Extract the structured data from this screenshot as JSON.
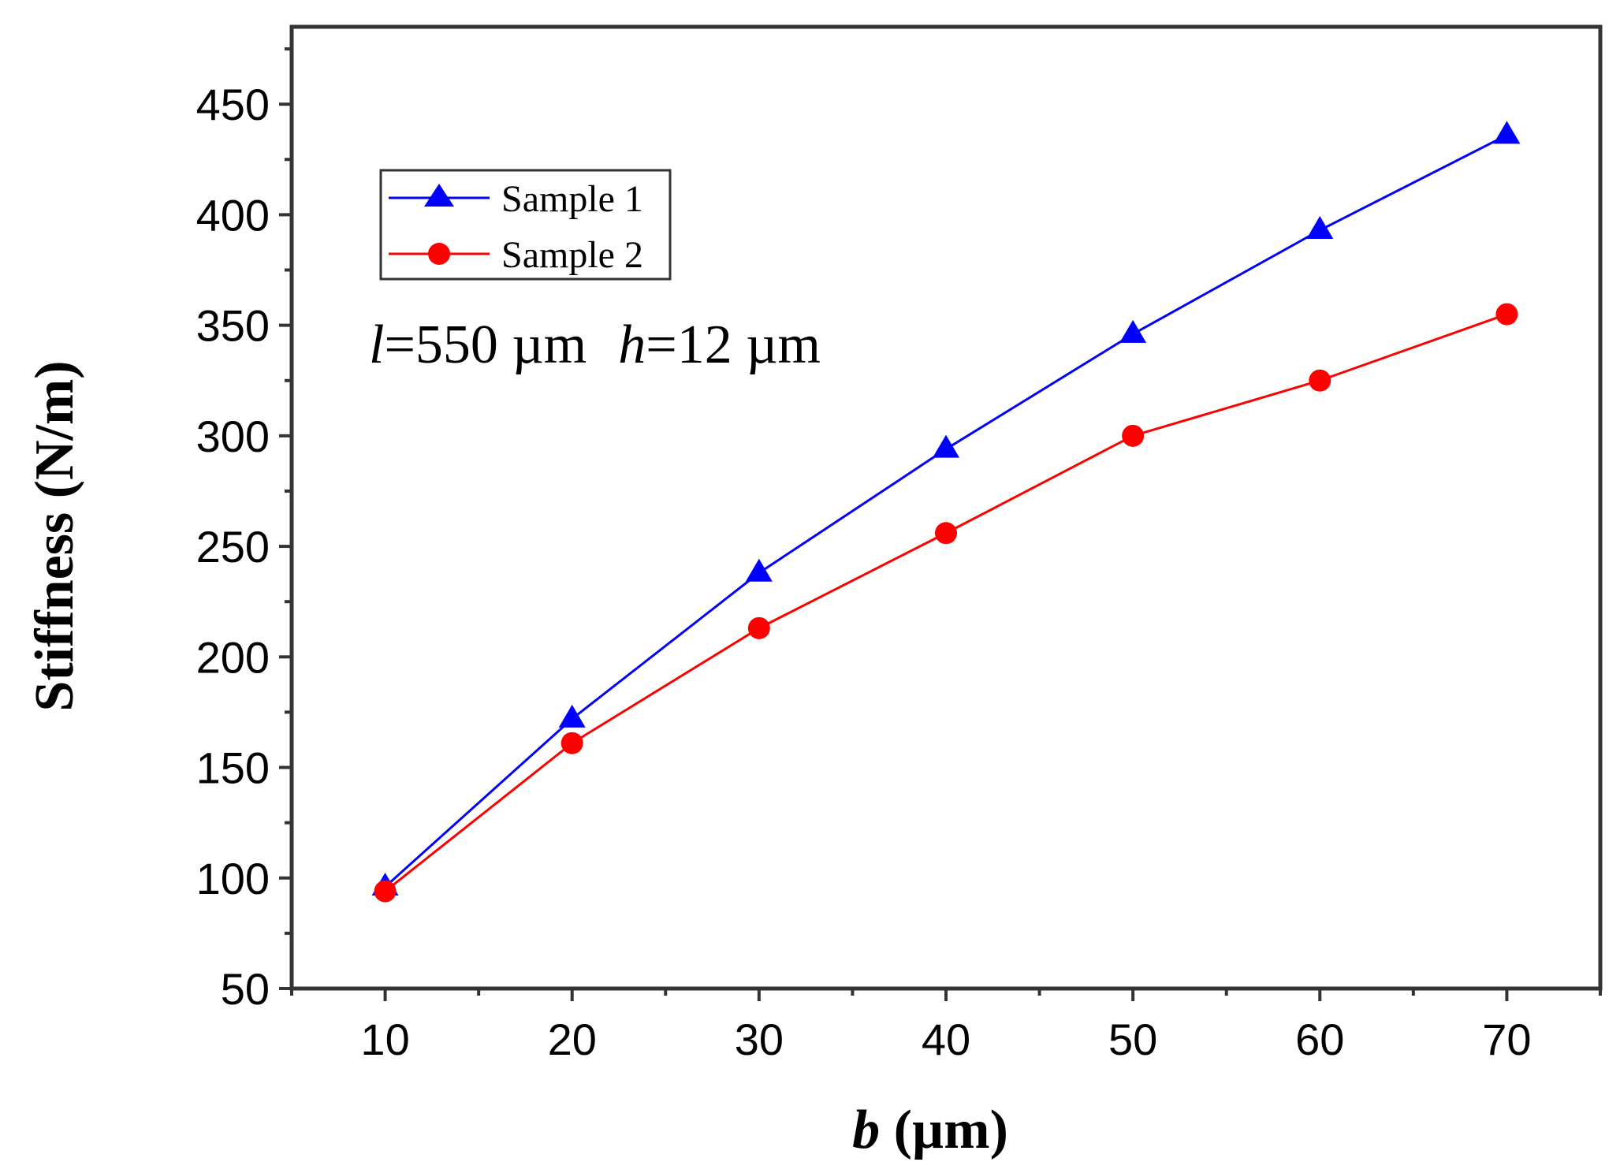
{
  "chart_data": {
    "type": "line",
    "title": "",
    "xlabel": {
      "italic": "b",
      "rest": " (µm)"
    },
    "ylabel": "Stiffness (N/m)",
    "x": [
      10,
      20,
      30,
      40,
      50,
      60,
      70
    ],
    "xlim": [
      5,
      75
    ],
    "ylim": [
      50,
      485
    ],
    "xticks": [
      10,
      20,
      30,
      40,
      50,
      60,
      70
    ],
    "yticks": [
      50,
      100,
      150,
      200,
      250,
      300,
      350,
      400,
      450
    ],
    "grid": false,
    "legend_position": "top-left",
    "series": [
      {
        "name": "Sample 1",
        "color": "#0000ff",
        "marker": "triangle",
        "values": [
          96,
          172,
          238,
          294,
          346,
          393,
          436
        ]
      },
      {
        "name": "Sample 2",
        "color": "#ff0000",
        "marker": "circle",
        "values": [
          94,
          161,
          213,
          256,
          300,
          325,
          355
        ]
      }
    ],
    "annotation": {
      "l_symbol": "l",
      "l_value": "=550 µm",
      "h_symbol": "h",
      "h_value": "=12 µm"
    }
  }
}
